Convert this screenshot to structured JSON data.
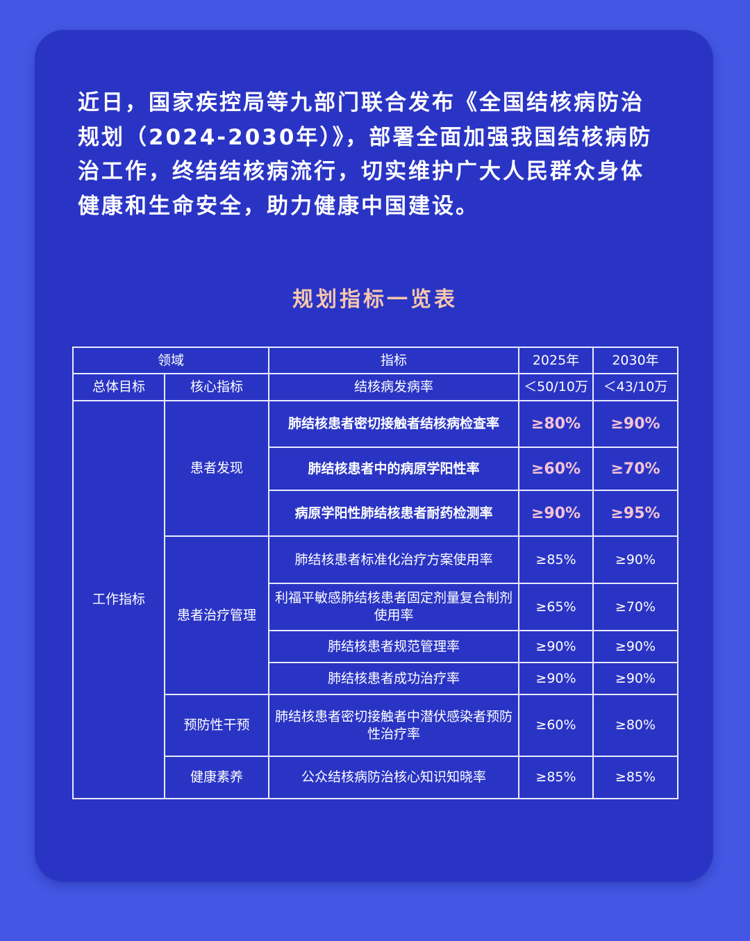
{
  "intro_lines": [
    "近日，国家疾控局等九部门联合发布《全国结核病防治",
    "规划（2024-2030年）》，部署全面加强我国结核病防",
    "治工作，终结结核病流行，切实维护广大人民群众身体",
    "健康和生命安全，助力健康中国建设。"
  ],
  "table_title": "规划指标一览表",
  "colors": {
    "background": "#4357e4",
    "card": "#2a34c4",
    "title": "#f6c7ae",
    "highlight": "#f4c3d6"
  },
  "table": {
    "headers": {
      "domain": "领域",
      "indicator": "指标",
      "y2025": "2025年",
      "y2030": "2030年"
    },
    "overall": {
      "group": "总体目标",
      "sub": "核心指标",
      "indicator": "结核病发病率",
      "y2025": "＜50/10万",
      "y2030": "＜43/10万"
    },
    "work_group": "工作指标",
    "sections": [
      {
        "name": "患者发现",
        "rows": [
          {
            "indicator": "肺结核患者密切接触者结核病检查率",
            "y2025": "≥80%",
            "y2030": "≥90%"
          },
          {
            "indicator": "肺结核患者中的病原学阳性率",
            "y2025": "≥60%",
            "y2030": "≥70%"
          },
          {
            "indicator": "病原学阳性肺结核患者耐药检测率",
            "y2025": "≥90%",
            "y2030": "≥95%"
          }
        ]
      },
      {
        "name": "患者治疗管理",
        "rows": [
          {
            "indicator": "肺结核患者标准化治疗方案使用率",
            "y2025": "≥85%",
            "y2030": "≥90%"
          },
          {
            "indicator": "利福平敏感肺结核患者固定剂量复合制剂使用率",
            "y2025": "≥65%",
            "y2030": "≥70%"
          },
          {
            "indicator": "肺结核患者规范管理率",
            "y2025": "≥90%",
            "y2030": "≥90%"
          },
          {
            "indicator": "肺结核患者成功治疗率",
            "y2025": "≥90%",
            "y2030": "≥90%"
          }
        ]
      },
      {
        "name": "预防性干预",
        "rows": [
          {
            "indicator": "肺结核患者密切接触者中潜伏感染者预防性治疗率",
            "y2025": "≥60%",
            "y2030": "≥80%"
          }
        ]
      },
      {
        "name": "健康素养",
        "rows": [
          {
            "indicator": "公众结核病防治核心知识知晓率",
            "y2025": "≥85%",
            "y2030": "≥85%"
          }
        ]
      }
    ]
  }
}
